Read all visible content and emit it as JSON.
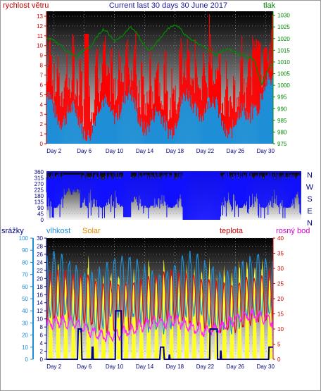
{
  "title": "Current last 30 days 30 June 2017",
  "colors": {
    "wind_speed": "#ff0000",
    "wind_gust_bg": "#1e8fd6",
    "pressure": "#008800",
    "direction": "#1010ff",
    "humidity": "#1e8fd6",
    "solar": "#ffff22",
    "temperature": "#dd1111",
    "dew_point": "#ff22ff",
    "rain": "#000088"
  },
  "chart_data": [
    {
      "type": "line",
      "name": "wind-pressure",
      "ylabel": "rychlost větru",
      "y2label": "tlak",
      "ylim": [
        0,
        13.5
      ],
      "y2lim": [
        975,
        1031.7
      ],
      "yticks": [
        0,
        1,
        2,
        3,
        4,
        5,
        6,
        7,
        8,
        9,
        10,
        11,
        12,
        13
      ],
      "y2ticks": [
        975,
        980,
        985,
        990,
        995,
        1000,
        1005,
        1010,
        1015,
        1020,
        1025,
        1030
      ],
      "xticks": [
        "Day 2",
        "Day 6",
        "Day 10",
        "Day 14",
        "Day 18",
        "Day 22",
        "Day 26",
        "Day 30"
      ],
      "xtick_days": [
        2,
        6,
        10,
        14,
        18,
        22,
        26,
        30
      ],
      "pressure_series": {
        "x": [
          1,
          1.5,
          2,
          2.5,
          3,
          3.5,
          4,
          4.5,
          5,
          5.5,
          6,
          6.5,
          7,
          7.5,
          8,
          8.5,
          9,
          9.5,
          10,
          10.5,
          11,
          11.5,
          12,
          12.5,
          13,
          13.5,
          14,
          14.5,
          15,
          15.5,
          16,
          16.5,
          17,
          17.5,
          18,
          18.5,
          19,
          19.5,
          20,
          20.5,
          21,
          21.5,
          22,
          22.5,
          23,
          23.5,
          24,
          24.5,
          25,
          25.5,
          26,
          26.5,
          27,
          27.5,
          28,
          28.5,
          29,
          29.5,
          30,
          30.5,
          31
        ],
        "y": [
          1020,
          1020,
          1019,
          1018,
          1017,
          1015,
          1014,
          1013,
          1012,
          1014,
          1015,
          1016,
          1017,
          1020,
          1022,
          1024,
          1023,
          1021,
          1019,
          1020,
          1021,
          1023,
          1025,
          1024,
          1022,
          1019,
          1017,
          1015,
          1016,
          1018,
          1020,
          1022,
          1024,
          1025,
          1026,
          1025,
          1023,
          1021,
          1020,
          1019,
          1018,
          1017,
          1016,
          1015,
          1014,
          1013,
          1014,
          1015,
          1016,
          1015,
          1014,
          1013,
          1013,
          1012,
          1012,
          1011,
          1005,
          1000,
          1004,
          1008,
          1009
        ]
      }
    },
    {
      "type": "area",
      "name": "wind-direction",
      "ylim": [
        0,
        360
      ],
      "yticks": [
        0,
        45,
        90,
        135,
        180,
        225,
        270,
        315,
        360
      ],
      "direction_labels": [
        "N",
        "W",
        "S",
        "E",
        "N"
      ]
    },
    {
      "type": "line",
      "name": "rain-humidity-solar-temp-dewpoint",
      "rain_label": "srážky",
      "humidity_label": "vlhkost",
      "solar_label": "Solar",
      "temp_label": "teplota",
      "dew_label": "rosný bod",
      "humidity_lim": [
        0,
        100
      ],
      "humidity_ticks": [
        0,
        10,
        20,
        30,
        40,
        50,
        60,
        70,
        80,
        90,
        100
      ],
      "rain_lim": [
        0,
        30
      ],
      "rain_ticks": [
        0,
        2,
        4,
        6,
        8,
        10,
        12,
        14,
        16,
        18,
        20,
        22,
        24,
        26,
        28,
        30
      ],
      "temp_lim": [
        0,
        40
      ],
      "temp_ticks": [
        0,
        5,
        10,
        15,
        20,
        25,
        30,
        35,
        40
      ],
      "xticks": [
        "Day 2",
        "Day 6",
        "Day 10",
        "Day 14",
        "Day 18",
        "Day 22",
        "Day 26",
        "Day 30"
      ],
      "xtick_days": [
        2,
        6,
        10,
        14,
        18,
        22,
        26,
        30
      ],
      "rain_series": {
        "x": [
          1,
          5.1,
          5.2,
          5.6,
          5.7,
          7.0,
          7.05,
          7.15,
          7.2,
          10.1,
          10.15,
          10.9,
          10.95,
          16.0,
          16.1,
          16.5,
          16.6,
          17.2,
          17.25,
          17.3,
          17.35,
          22.6,
          22.65,
          23.6,
          23.65,
          24.0,
          24.05,
          24.1,
          24.15,
          30.4,
          30.45,
          31
        ],
        "y": [
          0,
          0,
          7.5,
          7.5,
          0,
          0,
          3,
          3,
          0,
          0,
          12,
          12,
          0,
          0,
          3,
          3,
          0,
          0,
          1,
          1,
          0,
          0,
          7.5,
          7.5,
          0,
          0,
          2,
          2,
          0,
          0,
          3,
          3
        ]
      }
    }
  ]
}
